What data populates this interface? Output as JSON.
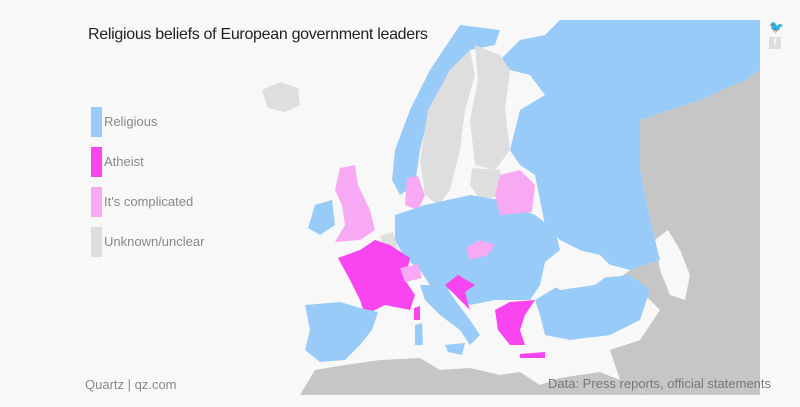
{
  "title": "Religious beliefs of European government leaders",
  "legend": [
    {
      "label": "Religious",
      "color": "#99cbf8"
    },
    {
      "label": "Atheist",
      "color": "#f845ef"
    },
    {
      "label": "It's complicated",
      "color": "#f8a9f3"
    },
    {
      "label": "Unknown/unclear",
      "color": "#dedede"
    }
  ],
  "other_land_color": "#c6c6c6",
  "credit": "Quartz | qz.com",
  "source": "Data: Press reports, official statements",
  "social": {
    "twitter_icon": "twitter-icon",
    "facebook_icon": "facebook-icon"
  }
}
